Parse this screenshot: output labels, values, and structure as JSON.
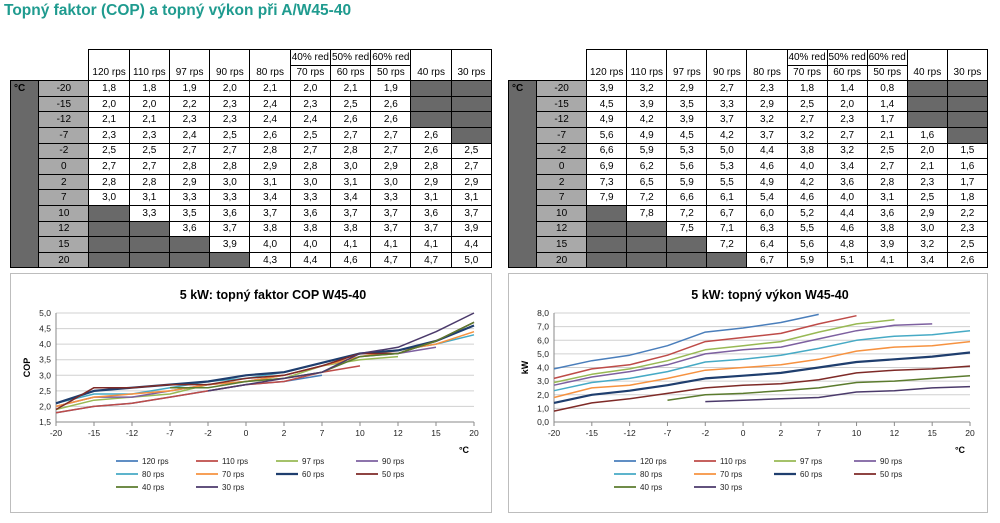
{
  "page_title": "Topný faktor (COP) a topný výkon při A/W45-40",
  "tables": [
    {
      "unit": "°C",
      "group_headers": [
        "40% red",
        "50% red",
        "60% red"
      ],
      "columns": [
        "120 rps",
        "110 rps",
        "97 rps",
        "90 rps",
        "80 rps",
        "70 rps",
        "60 rps",
        "50 rps",
        "40 rps",
        "30 rps"
      ],
      "rows": [
        {
          "t": "-20",
          "v": [
            "1,8",
            "1,8",
            "1,9",
            "2,0",
            "2,1",
            "2,0",
            "2,1",
            "1,9",
            "",
            ""
          ]
        },
        {
          "t": "-15",
          "v": [
            "2,0",
            "2,0",
            "2,2",
            "2,3",
            "2,4",
            "2,3",
            "2,5",
            "2,6",
            "",
            ""
          ]
        },
        {
          "t": "-12",
          "v": [
            "2,1",
            "2,1",
            "2,3",
            "2,3",
            "2,4",
            "2,4",
            "2,6",
            "2,6",
            "",
            ""
          ]
        },
        {
          "t": "-7",
          "v": [
            "2,3",
            "2,3",
            "2,4",
            "2,5",
            "2,6",
            "2,5",
            "2,7",
            "2,7",
            "2,6",
            ""
          ]
        },
        {
          "t": "-2",
          "v": [
            "2,5",
            "2,5",
            "2,7",
            "2,7",
            "2,8",
            "2,7",
            "2,8",
            "2,7",
            "2,6",
            "2,5"
          ]
        },
        {
          "t": "0",
          "v": [
            "2,7",
            "2,7",
            "2,8",
            "2,8",
            "2,9",
            "2,8",
            "3,0",
            "2,9",
            "2,8",
            "2,7"
          ]
        },
        {
          "t": "2",
          "v": [
            "2,8",
            "2,8",
            "2,9",
            "3,0",
            "3,1",
            "3,0",
            "3,1",
            "3,0",
            "2,9",
            "2,9"
          ]
        },
        {
          "t": "7",
          "v": [
            "3,0",
            "3,1",
            "3,3",
            "3,3",
            "3,4",
            "3,3",
            "3,4",
            "3,3",
            "3,1",
            "3,1"
          ]
        },
        {
          "t": "10",
          "v": [
            "",
            "3,3",
            "3,5",
            "3,6",
            "3,7",
            "3,6",
            "3,7",
            "3,7",
            "3,6",
            "3,7"
          ]
        },
        {
          "t": "12",
          "v": [
            "",
            "",
            "3,6",
            "3,7",
            "3,8",
            "3,8",
            "3,8",
            "3,7",
            "3,7",
            "3,9"
          ]
        },
        {
          "t": "15",
          "v": [
            "",
            "",
            "",
            "3,9",
            "4,0",
            "4,0",
            "4,1",
            "4,1",
            "4,1",
            "4,4"
          ]
        },
        {
          "t": "20",
          "v": [
            "",
            "",
            "",
            "",
            "4,3",
            "4,4",
            "4,6",
            "4,7",
            "4,7",
            "5,0"
          ]
        }
      ]
    },
    {
      "unit": "°C",
      "group_headers": [
        "40% red",
        "50% red",
        "60% red"
      ],
      "columns": [
        "120 rps",
        "110 rps",
        "97 rps",
        "90 rps",
        "80 rps",
        "70 rps",
        "60 rps",
        "50 rps",
        "40 rps",
        "30 rps"
      ],
      "rows": [
        {
          "t": "-20",
          "v": [
            "3,9",
            "3,2",
            "2,9",
            "2,7",
            "2,3",
            "1,8",
            "1,4",
            "0,8",
            "",
            ""
          ]
        },
        {
          "t": "-15",
          "v": [
            "4,5",
            "3,9",
            "3,5",
            "3,3",
            "2,9",
            "2,5",
            "2,0",
            "1,4",
            "",
            ""
          ]
        },
        {
          "t": "-12",
          "v": [
            "4,9",
            "4,2",
            "3,9",
            "3,7",
            "3,2",
            "2,7",
            "2,3",
            "1,7",
            "",
            ""
          ]
        },
        {
          "t": "-7",
          "v": [
            "5,6",
            "4,9",
            "4,5",
            "4,2",
            "3,7",
            "3,2",
            "2,7",
            "2,1",
            "1,6",
            ""
          ]
        },
        {
          "t": "-2",
          "v": [
            "6,6",
            "5,9",
            "5,3",
            "5,0",
            "4,4",
            "3,8",
            "3,2",
            "2,5",
            "2,0",
            "1,5"
          ]
        },
        {
          "t": "0",
          "v": [
            "6,9",
            "6,2",
            "5,6",
            "5,3",
            "4,6",
            "4,0",
            "3,4",
            "2,7",
            "2,1",
            "1,6"
          ]
        },
        {
          "t": "2",
          "v": [
            "7,3",
            "6,5",
            "5,9",
            "5,5",
            "4,9",
            "4,2",
            "3,6",
            "2,8",
            "2,3",
            "1,7"
          ]
        },
        {
          "t": "7",
          "v": [
            "7,9",
            "7,2",
            "6,6",
            "6,1",
            "5,4",
            "4,6",
            "4,0",
            "3,1",
            "2,5",
            "1,8"
          ]
        },
        {
          "t": "10",
          "v": [
            "",
            "7,8",
            "7,2",
            "6,7",
            "6,0",
            "5,2",
            "4,4",
            "3,6",
            "2,9",
            "2,2"
          ]
        },
        {
          "t": "12",
          "v": [
            "",
            "",
            "7,5",
            "7,1",
            "6,3",
            "5,5",
            "4,6",
            "3,8",
            "3,0",
            "2,3"
          ]
        },
        {
          "t": "15",
          "v": [
            "",
            "",
            "",
            "7,2",
            "6,4",
            "5,6",
            "4,8",
            "3,9",
            "3,2",
            "2,5"
          ]
        },
        {
          "t": "20",
          "v": [
            "",
            "",
            "",
            "",
            "6,7",
            "5,9",
            "5,1",
            "4,1",
            "3,4",
            "2,6"
          ]
        }
      ]
    }
  ],
  "chart_data": [
    {
      "type": "line",
      "title": "5 kW: topný faktor COP W45-40",
      "ylabel": "COP",
      "xlabel": "°C",
      "x": [
        -20,
        -15,
        -12,
        -7,
        -2,
        0,
        2,
        7,
        10,
        12,
        15,
        20
      ],
      "ylim": [
        1.5,
        5.0
      ],
      "ystep": 0.5,
      "decimals": 1,
      "grid": true,
      "legend": "bottom",
      "series": [
        {
          "name": "120 rps",
          "color": "#4a7ebb",
          "values": [
            1.8,
            2.0,
            2.1,
            2.3,
            2.5,
            2.7,
            2.8,
            3.0,
            null,
            null,
            null,
            null
          ]
        },
        {
          "name": "110 rps",
          "color": "#be4b48",
          "values": [
            1.8,
            2.0,
            2.1,
            2.3,
            2.5,
            2.7,
            2.8,
            3.1,
            3.3,
            null,
            null,
            null
          ]
        },
        {
          "name": "97 rps",
          "color": "#98b954",
          "values": [
            1.9,
            2.2,
            2.3,
            2.4,
            2.7,
            2.8,
            2.9,
            3.3,
            3.5,
            3.6,
            null,
            null
          ]
        },
        {
          "name": "90 rps",
          "color": "#7d60a0",
          "values": [
            2.0,
            2.3,
            2.3,
            2.5,
            2.7,
            2.8,
            3.0,
            3.3,
            3.6,
            3.7,
            3.9,
            null
          ]
        },
        {
          "name": "80 rps",
          "color": "#46aac5",
          "values": [
            2.1,
            2.4,
            2.4,
            2.6,
            2.8,
            2.9,
            3.1,
            3.4,
            3.7,
            3.8,
            4.0,
            4.3
          ]
        },
        {
          "name": "70 rps",
          "color": "#f69240",
          "values": [
            2.0,
            2.3,
            2.4,
            2.5,
            2.7,
            2.8,
            3.0,
            3.3,
            3.6,
            3.8,
            4.0,
            4.4
          ]
        },
        {
          "name": "60 rps",
          "color": "#1f3e6e",
          "width": 2.2,
          "values": [
            2.1,
            2.5,
            2.6,
            2.7,
            2.8,
            3.0,
            3.1,
            3.4,
            3.7,
            3.8,
            4.1,
            4.6
          ]
        },
        {
          "name": "50 rps",
          "color": "#7e2a27",
          "values": [
            1.9,
            2.6,
            2.6,
            2.7,
            2.7,
            2.9,
            3.0,
            3.3,
            3.7,
            3.7,
            4.1,
            4.7
          ]
        },
        {
          "name": "40 rps",
          "color": "#5b7b2e",
          "values": [
            null,
            null,
            null,
            2.6,
            2.6,
            2.8,
            2.9,
            3.1,
            3.6,
            3.7,
            4.1,
            4.7
          ]
        },
        {
          "name": "30 rps",
          "color": "#4b3a6b",
          "values": [
            null,
            null,
            null,
            null,
            2.5,
            2.7,
            2.9,
            3.1,
            3.7,
            3.9,
            4.4,
            5.0
          ]
        }
      ]
    },
    {
      "type": "line",
      "title": "5 kW: topný výkon W45-40",
      "ylabel": "kW",
      "xlabel": "°C",
      "x": [
        -20,
        -15,
        -12,
        -7,
        -2,
        0,
        2,
        7,
        10,
        12,
        15,
        20
      ],
      "ylim": [
        0.0,
        8.0
      ],
      "ystep": 1.0,
      "decimals": 1,
      "grid": true,
      "legend": "bottom",
      "series": [
        {
          "name": "120 rps",
          "color": "#4a7ebb",
          "values": [
            3.9,
            4.5,
            4.9,
            5.6,
            6.6,
            6.9,
            7.3,
            7.9,
            null,
            null,
            null,
            null
          ]
        },
        {
          "name": "110 rps",
          "color": "#be4b48",
          "values": [
            3.2,
            3.9,
            4.2,
            4.9,
            5.9,
            6.2,
            6.5,
            7.2,
            7.8,
            null,
            null,
            null
          ]
        },
        {
          "name": "97 rps",
          "color": "#98b954",
          "values": [
            2.9,
            3.5,
            3.9,
            4.5,
            5.3,
            5.6,
            5.9,
            6.6,
            7.2,
            7.5,
            null,
            null
          ]
        },
        {
          "name": "90 rps",
          "color": "#7d60a0",
          "values": [
            2.7,
            3.3,
            3.7,
            4.2,
            5.0,
            5.3,
            5.5,
            6.1,
            6.7,
            7.1,
            7.2,
            null
          ]
        },
        {
          "name": "80 rps",
          "color": "#46aac5",
          "values": [
            2.3,
            2.9,
            3.2,
            3.7,
            4.4,
            4.6,
            4.9,
            5.4,
            6.0,
            6.3,
            6.4,
            6.7
          ]
        },
        {
          "name": "70 rps",
          "color": "#f69240",
          "values": [
            1.8,
            2.5,
            2.7,
            3.2,
            3.8,
            4.0,
            4.2,
            4.6,
            5.2,
            5.5,
            5.6,
            5.9
          ]
        },
        {
          "name": "60 rps",
          "color": "#1f3e6e",
          "width": 2.2,
          "values": [
            1.4,
            2.0,
            2.3,
            2.7,
            3.2,
            3.4,
            3.6,
            4.0,
            4.4,
            4.6,
            4.8,
            5.1
          ]
        },
        {
          "name": "50 rps",
          "color": "#7e2a27",
          "values": [
            0.8,
            1.4,
            1.7,
            2.1,
            2.5,
            2.7,
            2.8,
            3.1,
            3.6,
            3.8,
            3.9,
            4.1
          ]
        },
        {
          "name": "40 rps",
          "color": "#5b7b2e",
          "values": [
            null,
            null,
            null,
            1.6,
            2.0,
            2.1,
            2.3,
            2.5,
            2.9,
            3.0,
            3.2,
            3.4
          ]
        },
        {
          "name": "30 rps",
          "color": "#4b3a6b",
          "values": [
            null,
            null,
            null,
            null,
            1.5,
            1.6,
            1.7,
            1.8,
            2.2,
            2.3,
            2.5,
            2.6
          ]
        }
      ]
    }
  ]
}
